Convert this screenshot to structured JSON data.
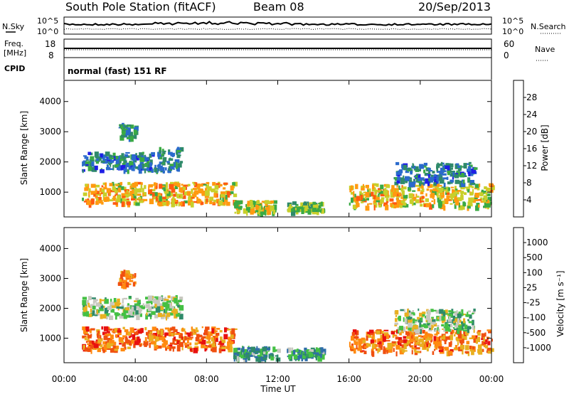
{
  "header": {
    "station": "South Pole Station (fitACF)",
    "beam": "Beam 08",
    "date": "20/Sep/2013"
  },
  "noise_panel": {
    "left_label": "N.Sky",
    "left_ticks": [
      "10^5",
      "10^0"
    ],
    "right_label": "N.Search",
    "right_ticks": [
      "10^5",
      "10^0"
    ]
  },
  "freq_panel": {
    "left_label_1": "Freq.",
    "left_label_2": "[MHz]",
    "left_ticks": [
      "18",
      "8"
    ],
    "right_label": "Nave",
    "right_ticks": [
      "60",
      "0"
    ],
    "cpid_label": "CPID",
    "cpid_value": "normal (fast) 151 RF"
  },
  "colors": {
    "power_scale": [
      "#1f1fe6",
      "#2a6acc",
      "#2f8a6a",
      "#3aaa44",
      "#c8cf2a",
      "#ff9a10",
      "#ff5a10",
      "#ee1010"
    ],
    "velocity_scale": [
      "#1f3fbf",
      "#2f6ea8",
      "#2f8a6a",
      "#44c044",
      "#c8c8c0",
      "#e8b020",
      "#ff8a10",
      "#f05010",
      "#e81010"
    ]
  },
  "chart_data": [
    {
      "type": "heatmap",
      "panel": "power",
      "xlabel": "Time UT",
      "ylabel": "Slant Range [km]",
      "x_ticks": [
        "00:00",
        "04:00",
        "08:00",
        "12:00",
        "16:00",
        "20:00",
        "00:00"
      ],
      "y_ticks": [
        "1000",
        "2000",
        "3000",
        "4000"
      ],
      "xlim": [
        0,
        24
      ],
      "ylim": [
        180,
        4700
      ],
      "colorbar": {
        "label": "Power [dB]",
        "ticks": [
          "4",
          "8",
          "12",
          "16",
          "20",
          "24",
          "28"
        ],
        "range": [
          0,
          32
        ]
      },
      "echo_bands": [
        {
          "t0": 1.0,
          "t1": 5.0,
          "r0": 1750,
          "r1": 2350,
          "level": 0.25
        },
        {
          "t0": 5.0,
          "t1": 6.5,
          "r0": 1700,
          "r1": 2500,
          "level": 0.3
        },
        {
          "t0": 1.0,
          "t1": 9.5,
          "r0": 650,
          "r1": 1350,
          "level": 0.65
        },
        {
          "t0": 9.5,
          "t1": 12.0,
          "r0": 350,
          "r1": 750,
          "level": 0.55
        },
        {
          "t0": 12.5,
          "t1": 14.5,
          "r0": 380,
          "r1": 700,
          "level": 0.45
        },
        {
          "t0": 16.0,
          "t1": 24.0,
          "r0": 550,
          "r1": 1300,
          "level": 0.6
        },
        {
          "t0": 18.5,
          "t1": 23.0,
          "r0": 1300,
          "r1": 2000,
          "level": 0.25
        },
        {
          "t0": 3.0,
          "t1": 4.0,
          "r0": 2800,
          "r1": 3300,
          "level": 0.3
        }
      ]
    },
    {
      "type": "heatmap",
      "panel": "velocity",
      "xlabel": "Time UT",
      "ylabel": "Slant Range [km]",
      "x_ticks": [
        "00:00",
        "04:00",
        "08:00",
        "12:00",
        "16:00",
        "20:00",
        "00:00"
      ],
      "y_ticks": [
        "1000",
        "2000",
        "3000",
        "4000"
      ],
      "xlim": [
        0,
        24
      ],
      "ylim": [
        180,
        4700
      ],
      "colorbar": {
        "label": "Velocity [m s⁻¹]",
        "ticks": [
          "1000",
          "500",
          "100",
          "25",
          "-25",
          "-100",
          "-500",
          "-1000"
        ],
        "range": [
          -1000,
          1000
        ]
      },
      "echo_bands": [
        {
          "t0": 1.0,
          "t1": 6.5,
          "r0": 1750,
          "r1": 2450,
          "level": 0.45
        },
        {
          "t0": 1.0,
          "t1": 9.5,
          "r0": 650,
          "r1": 1400,
          "level": 0.78
        },
        {
          "t0": 9.5,
          "t1": 12.0,
          "r0": 350,
          "r1": 750,
          "level": 0.3
        },
        {
          "t0": 12.5,
          "t1": 14.5,
          "r0": 380,
          "r1": 700,
          "level": 0.3
        },
        {
          "t0": 16.0,
          "t1": 24.0,
          "r0": 550,
          "r1": 1300,
          "level": 0.75
        },
        {
          "t0": 18.5,
          "t1": 23.0,
          "r0": 1300,
          "r1": 2000,
          "level": 0.45
        },
        {
          "t0": 3.0,
          "t1": 4.0,
          "r0": 2800,
          "r1": 3300,
          "level": 0.72
        }
      ]
    }
  ]
}
